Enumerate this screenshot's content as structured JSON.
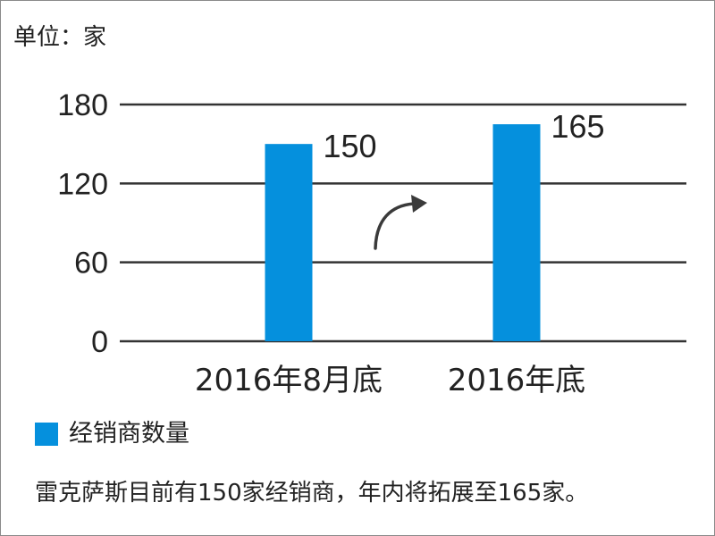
{
  "unit_label": "单位：家",
  "chart_data": {
    "type": "bar",
    "categories": [
      "2016年8月底",
      "2016年底"
    ],
    "series": [
      {
        "name": "经销商数量",
        "values": [
          150,
          165
        ]
      }
    ],
    "ylim": [
      0,
      180
    ],
    "yticks": [
      0,
      60,
      120,
      180
    ],
    "ytick_labels": [
      "0",
      "60",
      "120",
      "180"
    ],
    "data_labels": [
      "150",
      "165"
    ],
    "grid": true,
    "legend_position": "bottom-left",
    "bar_color": "#0590dd",
    "annotation_arrow": "upward-curved-arrow"
  },
  "legend": {
    "label": "经销商数量",
    "color": "#0590dd"
  },
  "caption": "雷克萨斯目前有150家经销商，年内将拓展至165家。"
}
